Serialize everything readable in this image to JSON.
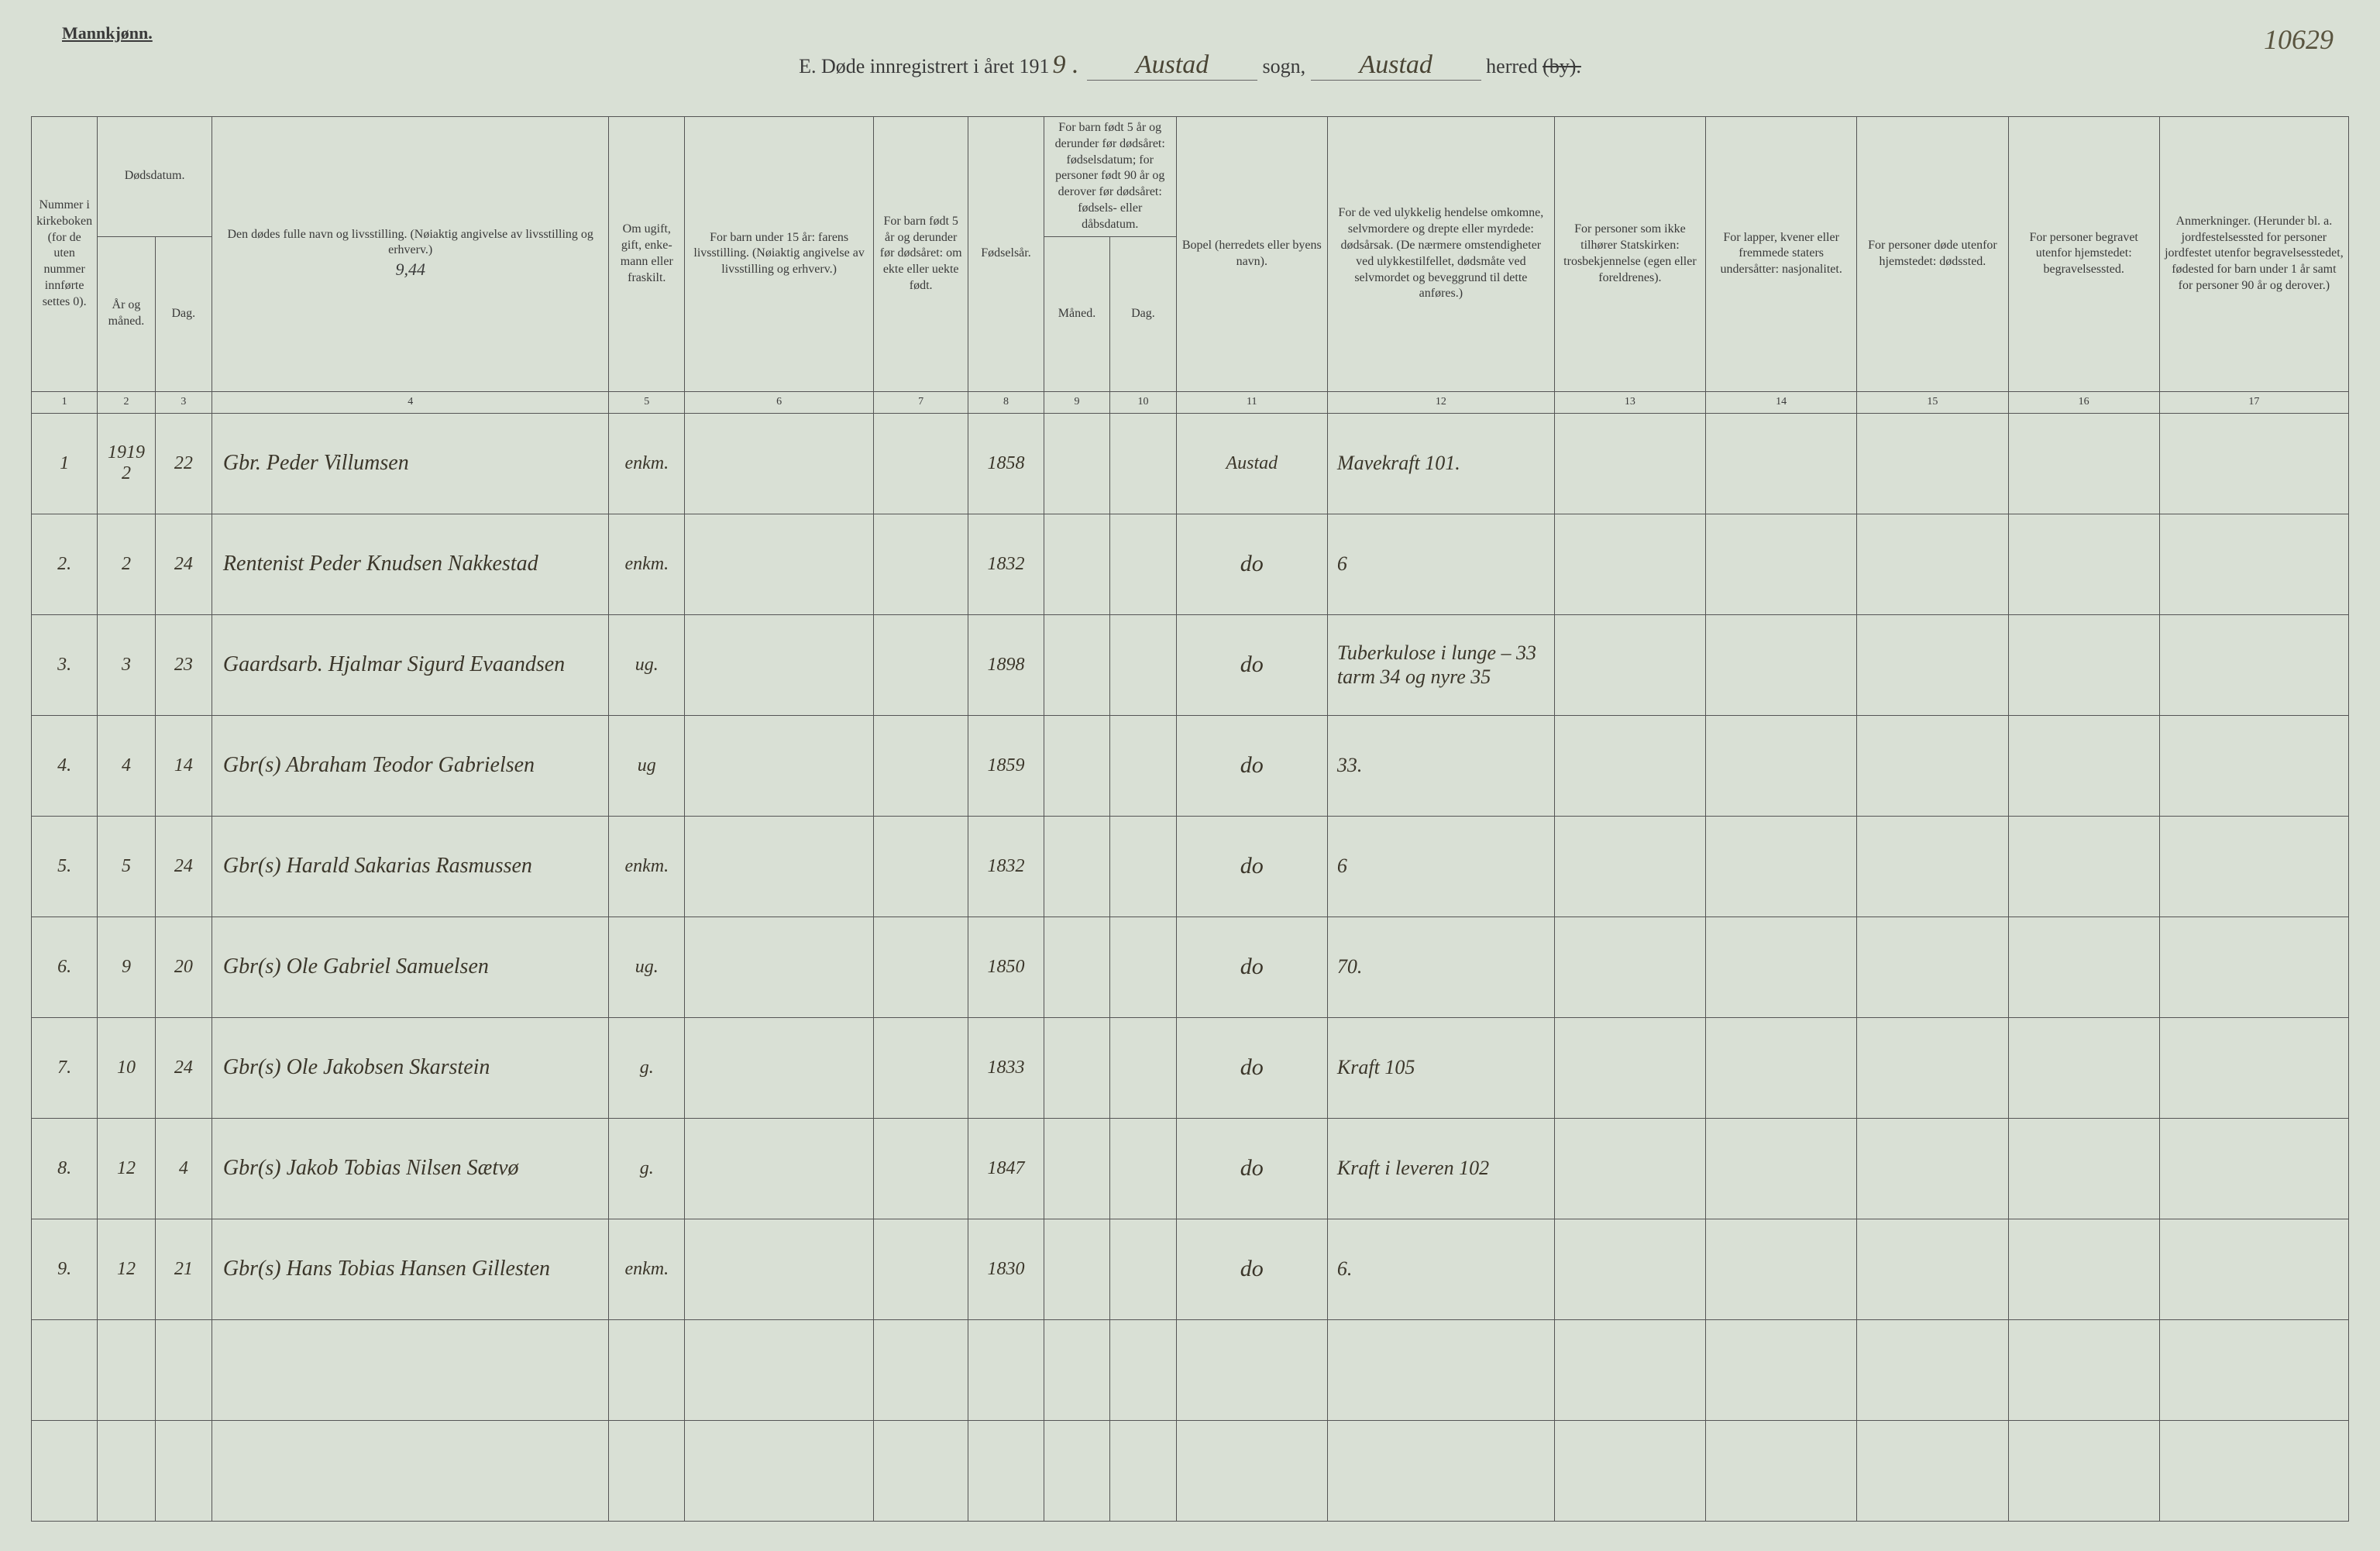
{
  "header": {
    "gender_label": "Mannkjønn.",
    "page_number_script": "10629",
    "title_prefix": "E. Døde innregistrert i året 191",
    "year_suffix": "9 .",
    "sogn_label": "sogn,",
    "herred_label": "herred",
    "by_label": "(by).",
    "sogn_value": "Austad",
    "herred_value": "Austad"
  },
  "columns": {
    "c1": "Nummer i kirke­boken (for de uten nummer innførte settes 0).",
    "c2a": "Dødsdatum.",
    "c2_sub1": "År og måned.",
    "c2_sub2": "Dag.",
    "c4": "Den dødes fulle navn og livsstilling. (Nøiaktig angivelse av livsstilling og erhverv.)",
    "c4_note": "9,44",
    "c5": "Om ugift, gift, enke­mann eller fraskilt.",
    "c6": "For barn under 15 år: farens livsstilling. (Nøiaktig angivelse av livsstilling og erhverv.)",
    "c7": "For barn født 5 år og derunder før dødsåret: om ekte eller uekte født.",
    "c8": "Fødsels­år.",
    "c9_10": "For barn født 5 år og derunder før dødsåret: fødselsdatum; for personer født 90 år og derover før dødsåret: fødsels- eller dåbsdatum.",
    "c9_sub": "Måned.",
    "c10_sub": "Dag.",
    "c11": "Bopel (herredets eller byens navn).",
    "c12": "For de ved ulykkelig hendelse omkomne, selvmordere og drepte eller myrdede: dødsårsak. (De nærmere omsten­digheter ved ulykkes­tilfellet, dødsmåte ved selvmordet og beveg­grund til dette anføres.)",
    "c13": "For personer som ikke tilhører Statskirken: trosbekjennelse (egen eller foreldrenes).",
    "c14": "For lapper, kvener eller fremmede staters undersåtter: nasjonalitet.",
    "c15": "For personer døde utenfor hjemstedet: dødssted.",
    "c16": "For personer begravet utenfor hjemstedet: begravelsessted.",
    "c17": "Anmerkninger. (Herunder bl. a. jordfestelsessted for personer jordfestet utenfor begravelses­stedet, fødested for barn under 1 år samt for personer 90 år og derover.)"
  },
  "colnums": [
    "1",
    "2",
    "3",
    "4",
    "5",
    "6",
    "7",
    "8",
    "9",
    "10",
    "11",
    "12",
    "13",
    "14",
    "15",
    "16",
    "17"
  ],
  "rows": [
    {
      "num": "1",
      "year": "1919 2",
      "day": "22",
      "name": "Gbr. Peder Villumsen",
      "status": "enkm.",
      "father": "",
      "ekte": "",
      "birth": "1858",
      "m": "",
      "d": "",
      "place": "Austad",
      "cause": "Mavekraft 101.",
      "c13": "",
      "c14": "",
      "c15": "",
      "c16": "",
      "c17": ""
    },
    {
      "num": "2.",
      "year": "2",
      "day": "24",
      "name": "Rentenist Peder Knudsen Nakke­stad",
      "status": "enkm.",
      "father": "",
      "ekte": "",
      "birth": "1832",
      "m": "",
      "d": "",
      "place": "do",
      "cause": "6",
      "c13": "",
      "c14": "",
      "c15": "",
      "c16": "",
      "c17": ""
    },
    {
      "num": "3.",
      "year": "3",
      "day": "23",
      "name": "Gaardsarb. Hjalmar Sigurd Eva­andsen",
      "status": "ug.",
      "father": "",
      "ekte": "",
      "birth": "1898",
      "m": "",
      "d": "",
      "place": "do",
      "cause": "Tuberkulose i lunge – 33 tarm 34 og nyre 35",
      "c13": "",
      "c14": "",
      "c15": "",
      "c16": "",
      "c17": ""
    },
    {
      "num": "4.",
      "year": "4",
      "day": "14",
      "name": "Gbr(s) Abraham Teodor Gabrielsen",
      "status": "ug",
      "father": "",
      "ekte": "",
      "birth": "1859",
      "m": "",
      "d": "",
      "place": "do",
      "cause": "33.",
      "c13": "",
      "c14": "",
      "c15": "",
      "c16": "",
      "c17": ""
    },
    {
      "num": "5.",
      "year": "5",
      "day": "24",
      "name": "Gbr(s) Harald Sakarias Rasmussen",
      "status": "enkm.",
      "father": "",
      "ekte": "",
      "birth": "1832",
      "m": "",
      "d": "",
      "place": "do",
      "cause": "6",
      "c13": "",
      "c14": "",
      "c15": "",
      "c16": "",
      "c17": ""
    },
    {
      "num": "6.",
      "year": "9",
      "day": "20",
      "name": "Gbr(s) Ole Gabriel Samuelsen",
      "status": "ug.",
      "father": "",
      "ekte": "",
      "birth": "1850",
      "m": "",
      "d": "",
      "place": "do",
      "cause": "70.",
      "c13": "",
      "c14": "",
      "c15": "",
      "c16": "",
      "c17": ""
    },
    {
      "num": "7.",
      "year": "10",
      "day": "24",
      "name": "Gbr(s) Ole Jakobsen Skarstein",
      "status": "g.",
      "father": "",
      "ekte": "",
      "birth": "1833",
      "m": "",
      "d": "",
      "place": "do",
      "cause": "Kraft 105",
      "c13": "",
      "c14": "",
      "c15": "",
      "c16": "",
      "c17": ""
    },
    {
      "num": "8.",
      "year": "12",
      "day": "4",
      "name": "Gbr(s) Jakob Tobias Nilsen Sætvø",
      "status": "g.",
      "father": "",
      "ekte": "",
      "birth": "1847",
      "m": "",
      "d": "",
      "place": "do",
      "cause": "Kraft i leveren 102",
      "c13": "",
      "c14": "",
      "c15": "",
      "c16": "",
      "c17": ""
    },
    {
      "num": "9.",
      "year": "12",
      "day": "21",
      "name": "Gbr(s) Hans Tobias Hansen Gille­sten",
      "status": "enkm.",
      "father": "",
      "ekte": "",
      "birth": "1830",
      "m": "",
      "d": "",
      "place": "do",
      "cause": "6.",
      "c13": "",
      "c14": "",
      "c15": "",
      "c16": "",
      "c17": ""
    }
  ],
  "empty_rows": 2,
  "colors": {
    "background": "#d9e0d5",
    "ink": "#3a3a3a",
    "script": "#4a4535",
    "border": "#555555"
  }
}
